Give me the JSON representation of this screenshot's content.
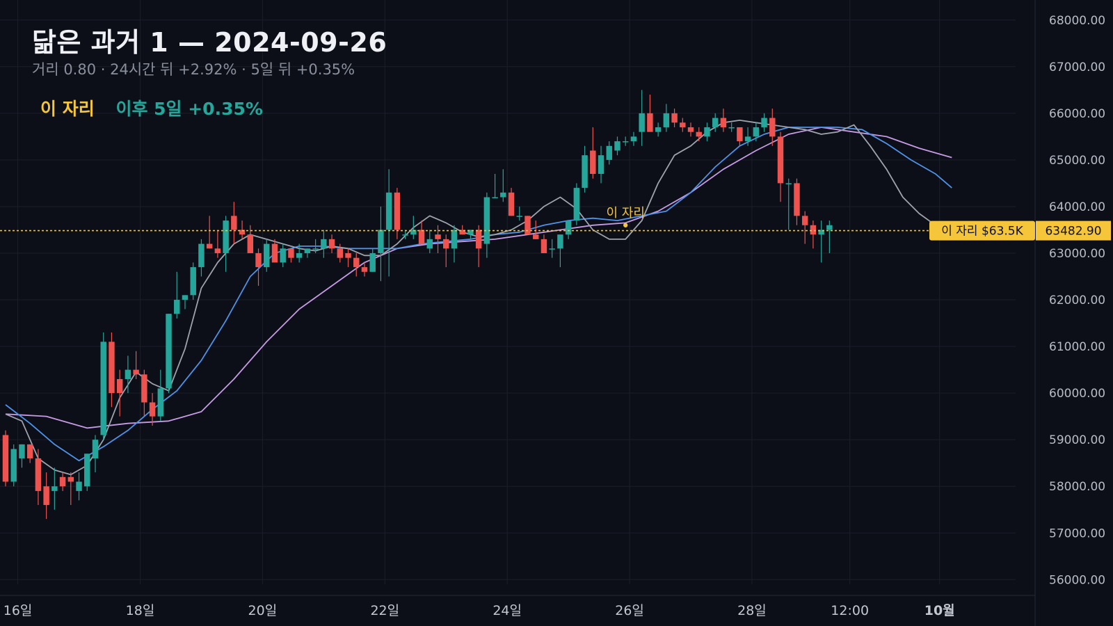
{
  "header": {
    "title": "닮은 과거 1 — 2024-09-26",
    "subtitle": "거리 0.80 · 24시간 뒤 +2.92% · 5일 뒤 +0.35%",
    "legend_here": "이 자리",
    "legend_after": "이후 5일 +0.35%"
  },
  "colors": {
    "background": "#0c0f17",
    "grid": "#1b1f2a",
    "up": "#26a69a",
    "down": "#ef5350",
    "ma_fast": "#9ea3ad",
    "ma_mid": "#4f93e8",
    "ma_slow": "#c79be6",
    "marker": "#f5c53a"
  },
  "chart_data": {
    "type": "candlestick",
    "ylim": [
      55900,
      68250
    ],
    "xlim": [
      0,
      117
    ],
    "yticks": [
      "56000.00",
      "57000.00",
      "58000.00",
      "59000.00",
      "60000.00",
      "61000.00",
      "62000.00",
      "63000.00",
      "64000.00",
      "65000.00",
      "66000.00",
      "67000.00",
      "68000.00"
    ],
    "ytick_values": [
      56000,
      57000,
      58000,
      59000,
      60000,
      61000,
      62000,
      63000,
      64000,
      65000,
      66000,
      67000,
      68000
    ],
    "xticks": [
      {
        "label": "16일",
        "x": 1.5,
        "bold": false
      },
      {
        "label": "18일",
        "x": 16.5,
        "bold": false
      },
      {
        "label": "20일",
        "x": 31.5,
        "bold": false
      },
      {
        "label": "22일",
        "x": 46.5,
        "bold": false
      },
      {
        "label": "24일",
        "x": 61.5,
        "bold": false
      },
      {
        "label": "26일",
        "x": 76.5,
        "bold": false
      },
      {
        "label": "28일",
        "x": 91.5,
        "bold": false
      },
      {
        "label": "12:00",
        "x": 103.5,
        "bold": false
      },
      {
        "label": "10월",
        "x": 114.5,
        "bold": true
      }
    ],
    "candles": [
      [
        59100,
        59200,
        58000,
        58100
      ],
      [
        58100,
        58900,
        58000,
        58800
      ],
      [
        58600,
        58900,
        58400,
        58900
      ],
      [
        58900,
        58900,
        58500,
        58600
      ],
      [
        58600,
        58800,
        57600,
        57900
      ],
      [
        58000,
        58300,
        57300,
        57600
      ],
      [
        57900,
        58400,
        57500,
        58000
      ],
      [
        58200,
        58300,
        57900,
        58000
      ],
      [
        58200,
        58300,
        57600,
        58100
      ],
      [
        57900,
        58300,
        57700,
        58100
      ],
      [
        58000,
        58700,
        57900,
        58700
      ],
      [
        58600,
        59100,
        58300,
        59000
      ],
      [
        59100,
        61300,
        59000,
        61100
      ],
      [
        61100,
        61300,
        59700,
        60000
      ],
      [
        60300,
        60500,
        59500,
        60000
      ],
      [
        60300,
        60800,
        60000,
        60500
      ],
      [
        60500,
        60900,
        60300,
        60400
      ],
      [
        60400,
        60500,
        59500,
        59800
      ],
      [
        59800,
        60000,
        59300,
        59500
      ],
      [
        59500,
        60500,
        59400,
        60100
      ],
      [
        60100,
        61700,
        60000,
        61700
      ],
      [
        61700,
        62600,
        61600,
        62000
      ],
      [
        62000,
        62100,
        61800,
        62100
      ],
      [
        62100,
        62800,
        62000,
        62700
      ],
      [
        62700,
        63300,
        62500,
        63200
      ],
      [
        63200,
        63800,
        63100,
        63100
      ],
      [
        63100,
        63500,
        62900,
        63000
      ],
      [
        63000,
        63800,
        62600,
        63700
      ],
      [
        63800,
        64100,
        63200,
        63500
      ],
      [
        63500,
        63700,
        63300,
        63400
      ],
      [
        63400,
        63600,
        63000,
        63000
      ],
      [
        63000,
        63100,
        62300,
        62700
      ],
      [
        62700,
        63300,
        62600,
        63200
      ],
      [
        63200,
        63300,
        62800,
        62800
      ],
      [
        62800,
        63200,
        62700,
        63100
      ],
      [
        63100,
        63100,
        62800,
        62900
      ],
      [
        62900,
        63200,
        62800,
        63000
      ],
      [
        63000,
        63100,
        62900,
        63100
      ],
      [
        63100,
        63300,
        63000,
        63100
      ],
      [
        63100,
        63500,
        62900,
        63300
      ],
      [
        63300,
        63400,
        63000,
        63100
      ],
      [
        63100,
        63200,
        62800,
        62900
      ],
      [
        63000,
        63100,
        62700,
        62900
      ],
      [
        62900,
        63000,
        62500,
        62700
      ],
      [
        62700,
        62800,
        62500,
        62600
      ],
      [
        62600,
        63100,
        62600,
        63000
      ],
      [
        63000,
        64000,
        62400,
        63500
      ],
      [
        63500,
        64800,
        62500,
        64300
      ],
      [
        64300,
        64400,
        63300,
        63500
      ],
      [
        63400,
        63500,
        63300,
        63400
      ],
      [
        63400,
        63800,
        63300,
        63500
      ],
      [
        63500,
        63700,
        63200,
        63200
      ],
      [
        63100,
        63500,
        63000,
        63300
      ],
      [
        63400,
        63600,
        63000,
        63300
      ],
      [
        63300,
        63400,
        62700,
        63100
      ],
      [
        63100,
        63600,
        62800,
        63500
      ],
      [
        63500,
        63600,
        63400,
        63400
      ],
      [
        63400,
        63500,
        63300,
        63500
      ],
      [
        63500,
        63600,
        62700,
        63100
      ],
      [
        63200,
        64300,
        62900,
        64200
      ],
      [
        64200,
        64700,
        64200,
        64200
      ],
      [
        64200,
        64800,
        64100,
        64300
      ],
      [
        64300,
        64400,
        63800,
        63800
      ],
      [
        63800,
        64000,
        63700,
        63800
      ],
      [
        63800,
        63800,
        63400,
        63400
      ],
      [
        63400,
        63700,
        63300,
        63300
      ],
      [
        63300,
        63400,
        63000,
        63000
      ],
      [
        63100,
        63300,
        62900,
        63100
      ],
      [
        63100,
        63400,
        62700,
        63400
      ],
      [
        63400,
        63700,
        63300,
        63700
      ],
      [
        63700,
        64500,
        63600,
        64400
      ],
      [
        64400,
        65300,
        64300,
        65100
      ],
      [
        65200,
        65700,
        64600,
        64700
      ],
      [
        64700,
        65300,
        64500,
        65100
      ],
      [
        65000,
        65400,
        64900,
        65300
      ],
      [
        65200,
        65500,
        65100,
        65400
      ],
      [
        65400,
        65500,
        65300,
        65400
      ],
      [
        65400,
        65600,
        65300,
        65500
      ],
      [
        65600,
        66500,
        65300,
        66000
      ],
      [
        66000,
        66400,
        65700,
        65600
      ],
      [
        65600,
        65800,
        65500,
        65700
      ],
      [
        65700,
        66200,
        65600,
        66000
      ],
      [
        66000,
        66100,
        65700,
        65800
      ],
      [
        65800,
        65900,
        65600,
        65700
      ],
      [
        65700,
        65800,
        65500,
        65600
      ],
      [
        65600,
        65700,
        65400,
        65500
      ],
      [
        65500,
        65800,
        65400,
        65700
      ],
      [
        65700,
        66000,
        65600,
        65900
      ],
      [
        65900,
        66100,
        65600,
        65700
      ],
      [
        65700,
        65800,
        65600,
        65700
      ],
      [
        65700,
        65700,
        65300,
        65400
      ],
      [
        65400,
        65700,
        65300,
        65500
      ],
      [
        65500,
        65800,
        65400,
        65700
      ],
      [
        65700,
        66000,
        65600,
        65900
      ],
      [
        65900,
        66100,
        65300,
        65500
      ],
      [
        65500,
        65600,
        64100,
        64500
      ],
      [
        64500,
        64600,
        63500,
        64500
      ],
      [
        64500,
        64600,
        63600,
        63800
      ],
      [
        63800,
        63900,
        63200,
        63600
      ],
      [
        63600,
        63700,
        63100,
        63400
      ],
      [
        63400,
        63700,
        62800,
        63500
      ],
      [
        63500,
        63700,
        63000,
        63600
      ]
    ],
    "ma_fast": [
      [
        0,
        59550
      ],
      [
        2,
        59400
      ],
      [
        4,
        58600
      ],
      [
        6,
        58350
      ],
      [
        8,
        58250
      ],
      [
        10,
        58450
      ],
      [
        12,
        59000
      ],
      [
        14,
        59900
      ],
      [
        16,
        60450
      ],
      [
        18,
        60200
      ],
      [
        20,
        60050
      ],
      [
        22,
        60950
      ],
      [
        24,
        62250
      ],
      [
        26,
        62800
      ],
      [
        28,
        63200
      ],
      [
        30,
        63400
      ],
      [
        32,
        63300
      ],
      [
        34,
        63200
      ],
      [
        36,
        63100
      ],
      [
        38,
        63050
      ],
      [
        40,
        63150
      ],
      [
        42,
        63100
      ],
      [
        44,
        62950
      ],
      [
        46,
        62950
      ],
      [
        48,
        63200
      ],
      [
        50,
        63550
      ],
      [
        52,
        63800
      ],
      [
        54,
        63650
      ],
      [
        56,
        63450
      ],
      [
        58,
        63350
      ],
      [
        60,
        63400
      ],
      [
        62,
        63500
      ],
      [
        64,
        63700
      ],
      [
        66,
        64000
      ],
      [
        68,
        64200
      ],
      [
        70,
        63950
      ],
      [
        72,
        63500
      ],
      [
        74,
        63300
      ],
      [
        76,
        63300
      ],
      [
        78,
        63700
      ],
      [
        80,
        64500
      ],
      [
        82,
        65100
      ],
      [
        84,
        65300
      ],
      [
        86,
        65600
      ],
      [
        88,
        65800
      ],
      [
        90,
        65850
      ],
      [
        92,
        65800
      ],
      [
        94,
        65750
      ],
      [
        96,
        65700
      ],
      [
        98,
        65650
      ],
      [
        100,
        65550
      ],
      [
        102,
        65600
      ],
      [
        104,
        65750
      ],
      [
        106,
        65300
      ],
      [
        108,
        64800
      ],
      [
        110,
        64200
      ],
      [
        112,
        63850
      ],
      [
        114,
        63600
      ],
      [
        116,
        63550
      ]
    ],
    "ma_mid": [
      [
        0,
        59750
      ],
      [
        3,
        59350
      ],
      [
        6,
        58900
      ],
      [
        9,
        58550
      ],
      [
        12,
        58850
      ],
      [
        15,
        59200
      ],
      [
        18,
        59650
      ],
      [
        21,
        60050
      ],
      [
        24,
        60700
      ],
      [
        27,
        61550
      ],
      [
        30,
        62500
      ],
      [
        33,
        63000
      ],
      [
        36,
        63150
      ],
      [
        39,
        63150
      ],
      [
        42,
        63100
      ],
      [
        45,
        63100
      ],
      [
        48,
        63100
      ],
      [
        51,
        63200
      ],
      [
        54,
        63250
      ],
      [
        57,
        63300
      ],
      [
        60,
        63400
      ],
      [
        63,
        63450
      ],
      [
        66,
        63600
      ],
      [
        69,
        63700
      ],
      [
        72,
        63750
      ],
      [
        75,
        63700
      ],
      [
        78,
        63800
      ],
      [
        81,
        63900
      ],
      [
        84,
        64300
      ],
      [
        87,
        64850
      ],
      [
        90,
        65300
      ],
      [
        93,
        65550
      ],
      [
        96,
        65700
      ],
      [
        99,
        65700
      ],
      [
        102,
        65700
      ],
      [
        105,
        65650
      ],
      [
        108,
        65350
      ],
      [
        111,
        65000
      ],
      [
        114,
        64700
      ],
      [
        116,
        64400
      ]
    ],
    "ma_slow": [
      [
        0,
        59550
      ],
      [
        5,
        59500
      ],
      [
        10,
        59250
      ],
      [
        15,
        59350
      ],
      [
        20,
        59400
      ],
      [
        24,
        59600
      ],
      [
        28,
        60300
      ],
      [
        32,
        61100
      ],
      [
        36,
        61800
      ],
      [
        40,
        62300
      ],
      [
        44,
        62800
      ],
      [
        48,
        63100
      ],
      [
        52,
        63200
      ],
      [
        56,
        63250
      ],
      [
        60,
        63300
      ],
      [
        64,
        63400
      ],
      [
        68,
        63500
      ],
      [
        72,
        63600
      ],
      [
        76,
        63650
      ],
      [
        80,
        63900
      ],
      [
        84,
        64300
      ],
      [
        88,
        64800
      ],
      [
        92,
        65200
      ],
      [
        96,
        65550
      ],
      [
        100,
        65700
      ],
      [
        104,
        65600
      ],
      [
        108,
        65500
      ],
      [
        112,
        65250
      ],
      [
        116,
        65050
      ]
    ],
    "marker": {
      "label": "이 자리",
      "x": 76,
      "y": 63600,
      "hline_value": 63482.9,
      "price_label": "63482.90",
      "tag_label": "이 자리 $63.5K"
    }
  }
}
